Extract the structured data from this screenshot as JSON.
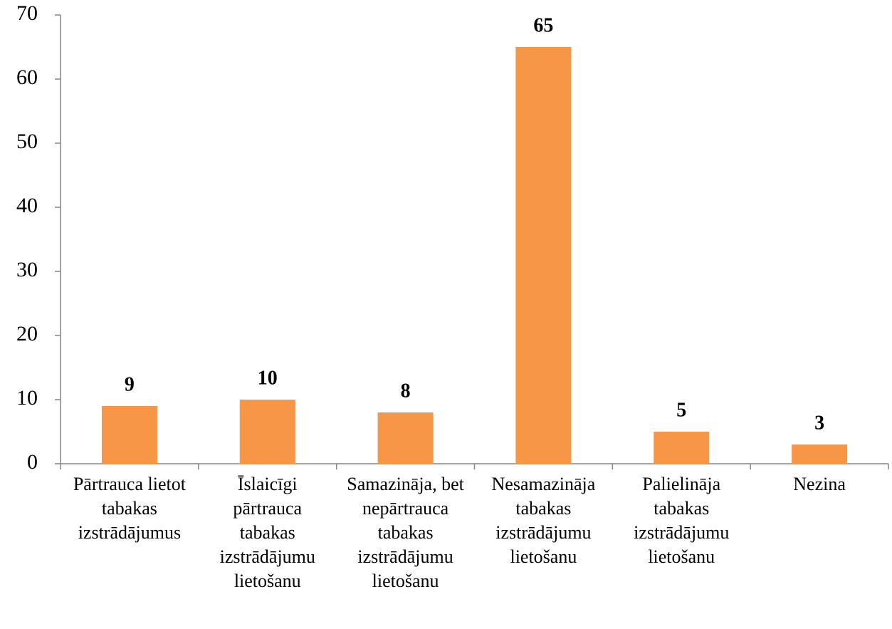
{
  "chart_data": {
    "type": "bar",
    "categories": [
      "Pārtrauca lietot tabakas izstrādājumus",
      "Īslaicīgi pārtrauca tabakas izstrādājumu lietošanu",
      "Samazināja, bet nepārtrauca tabakas izstrādājumu lietošanu",
      "Nesamazināja tabakas izstrādājumu lietošanu",
      "Palielināja tabakas izstrādājumu lietošanu",
      "Nezina"
    ],
    "values": [
      9,
      10,
      8,
      65,
      5,
      3
    ],
    "color": "#f79646",
    "ylim": [
      0,
      70
    ],
    "yticks": [
      0,
      10,
      20,
      30,
      40,
      50,
      60,
      70
    ],
    "grid": false
  }
}
